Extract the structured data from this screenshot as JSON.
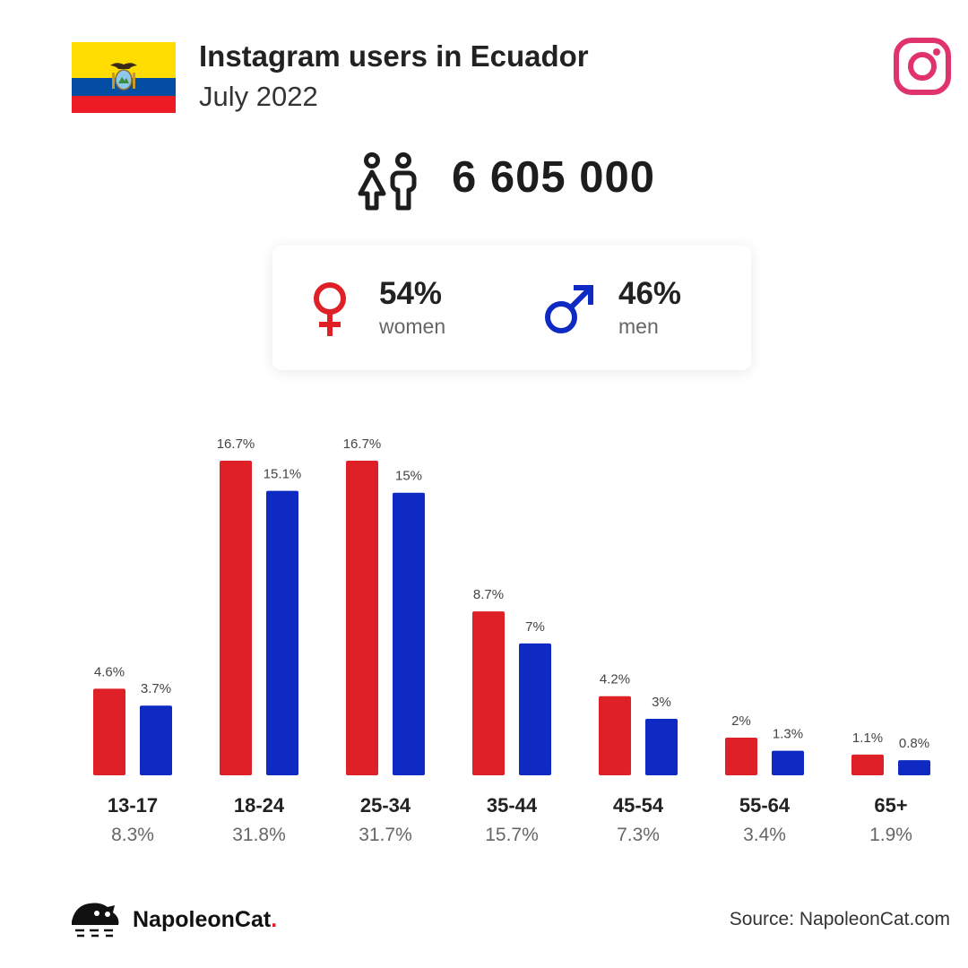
{
  "header": {
    "title": "Instagram users in Ecuador",
    "subtitle": "July 2022",
    "flag_icon": "ecuador-flag",
    "platform_icon": "instagram-icon"
  },
  "total": {
    "icon": "users-icon",
    "value": "6 605 000"
  },
  "gender": {
    "women": {
      "pct": "54%",
      "label": "women",
      "icon": "female-icon"
    },
    "men": {
      "pct": "46%",
      "label": "men",
      "icon": "male-icon"
    }
  },
  "colors": {
    "women": "#df2027",
    "men": "#0e2ac3",
    "instagram": "#e0336b"
  },
  "chart_data": {
    "type": "bar",
    "categories": [
      "13-17",
      "18-24",
      "25-34",
      "35-44",
      "45-54",
      "55-64",
      "65+"
    ],
    "totals": [
      "8.3%",
      "31.8%",
      "31.7%",
      "15.7%",
      "7.3%",
      "3.4%",
      "1.9%"
    ],
    "series": [
      {
        "name": "women",
        "values": [
          4.6,
          16.7,
          16.7,
          8.7,
          4.2,
          2,
          1.1
        ],
        "labels": [
          "4.6%",
          "16.7%",
          "16.7%",
          "8.7%",
          "4.2%",
          "2%",
          "1.1%"
        ],
        "color": "#df2027"
      },
      {
        "name": "men",
        "values": [
          3.7,
          15.1,
          15,
          7,
          3,
          1.3,
          0.8
        ],
        "labels": [
          "3.7%",
          "15.1%",
          "15%",
          "7%",
          "3%",
          "1.3%",
          "0.8%"
        ],
        "color": "#0e2ac3"
      }
    ],
    "ylim": [
      0,
      16.7
    ],
    "grid": false
  },
  "footer": {
    "brand_name": "NapoleonCat",
    "brand_dot": ".",
    "source": "Source: NapoleonCat.com",
    "logo_icon": "napoleoncat-logo"
  }
}
